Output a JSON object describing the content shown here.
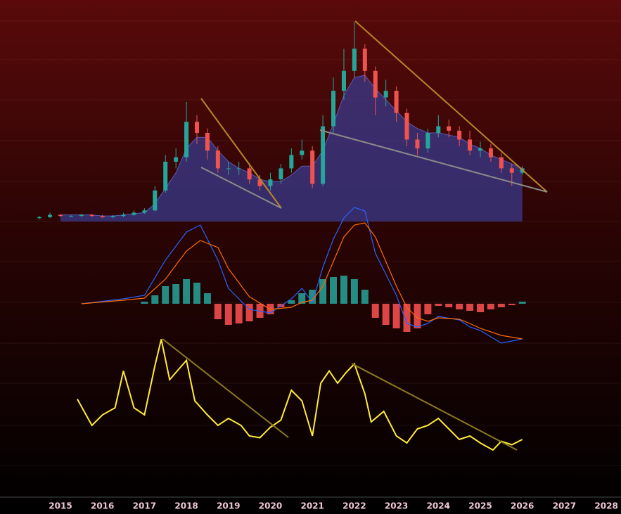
{
  "chart_data": [
    {
      "type": "candlestick",
      "x": [
        2014.5,
        2014.75,
        2015,
        2015.25,
        2015.5,
        2015.75,
        2016,
        2016.25,
        2016.5,
        2016.75,
        2017,
        2017.25,
        2017.5,
        2017.75,
        2018,
        2018.25,
        2018.5,
        2018.75,
        2019,
        2019.25,
        2019.5,
        2019.75,
        2020,
        2020.25,
        2020.5,
        2020.75,
        2021,
        2021.25,
        2021.5,
        2021.75,
        2022,
        2022.25,
        2022.5,
        2022.75,
        2023,
        2023.25,
        2023.5,
        2023.75,
        2024,
        2024.25,
        2024.5,
        2024.75,
        2025,
        2025.25,
        2025.5,
        2025.75,
        2026
      ],
      "open": [
        1.5,
        2,
        3,
        2.5,
        2.5,
        3,
        2.5,
        2,
        2.5,
        3,
        4,
        5,
        14,
        27,
        29,
        45,
        40,
        32,
        24,
        24,
        24,
        19,
        16,
        19,
        24,
        30,
        32,
        17,
        43,
        59,
        68,
        78,
        68,
        56,
        59,
        49,
        37,
        33,
        40,
        43,
        41,
        37,
        32,
        33,
        29,
        24,
        22
      ],
      "high": [
        2.5,
        4,
        3.5,
        3,
        3.5,
        3.5,
        3,
        3,
        4,
        5,
        6,
        16,
        30,
        33,
        54,
        48,
        42,
        34,
        27,
        27,
        26,
        21,
        22,
        26,
        33,
        37,
        34,
        48,
        65,
        78,
        90,
        80,
        70,
        64,
        61,
        51,
        40,
        42,
        48,
        46,
        43,
        41,
        36,
        35,
        31,
        26,
        25
      ],
      "low": [
        1,
        1.5,
        2,
        2,
        2,
        2,
        1.5,
        1.5,
        2,
        2.5,
        3.5,
        4.5,
        13,
        24,
        27,
        35,
        28,
        22,
        21,
        21,
        17,
        14,
        14,
        17,
        22,
        28,
        15,
        16,
        40,
        55,
        65,
        63,
        48,
        52,
        45,
        34,
        30,
        31,
        38,
        38,
        34,
        30,
        29,
        27,
        22,
        16,
        21
      ],
      "close": [
        2,
        3,
        2.5,
        2.5,
        3,
        2.5,
        2,
        2.5,
        3,
        4,
        5,
        14,
        27,
        29,
        45,
        40,
        32,
        24,
        24,
        24,
        19,
        16,
        19,
        24,
        30,
        32,
        17,
        43,
        59,
        68,
        78,
        68,
        56,
        59,
        49,
        37,
        33,
        40,
        43,
        41,
        37,
        32,
        33,
        29,
        24,
        22,
        24
      ],
      "ma": [
        null,
        null,
        3,
        3,
        3,
        3,
        2.5,
        2.5,
        3,
        3.5,
        4,
        8,
        15,
        22,
        33,
        38,
        38,
        32,
        27,
        24,
        22,
        19,
        18,
        18,
        21,
        25,
        25,
        32,
        44,
        57,
        65,
        66,
        60,
        55,
        50,
        45,
        42,
        40,
        40,
        39,
        38,
        35,
        33,
        30,
        28,
        26,
        24
      ],
      "up_color": "#26a69a",
      "down_color": "#ef5350",
      "ma_color": "#3a3a8c",
      "xlim": [
        2013.56,
        2028.35
      ],
      "ylim": [
        0,
        100
      ],
      "xticks": [
        2015,
        2016,
        2017,
        2018,
        2019,
        2020,
        2021,
        2022,
        2023,
        2024,
        2025,
        2026,
        2027,
        2028
      ]
    },
    {
      "type": "macd",
      "x": [
        2015.5,
        2016.5,
        2017,
        2017.5,
        2018,
        2018.33,
        2018.75,
        2019,
        2019.5,
        2020,
        2020.5,
        2020.75,
        2021,
        2021.25,
        2021.5,
        2021.75,
        2022,
        2022.25,
        2022.5,
        2022.75,
        2023,
        2023.25,
        2023.5,
        2023.75,
        2024,
        2024.5,
        2024.75,
        2025,
        2025.5,
        2026
      ],
      "series": [
        {
          "color": "#2962ff",
          "values": [
            0,
            7,
            12,
            62,
            102,
            112,
            62,
            22,
            -8,
            -13,
            7,
            22,
            2,
            52,
            92,
            122,
            137,
            132,
            72,
            42,
            12,
            -28,
            -33,
            -28,
            -18,
            -23,
            -33,
            -38,
            -56,
            -50
          ]
        },
        {
          "color": "#ff6d00",
          "values": [
            0,
            5,
            8,
            35,
            75,
            90,
            80,
            50,
            10,
            -8,
            -5,
            2,
            5,
            25,
            60,
            95,
            112,
            115,
            95,
            60,
            25,
            -5,
            -20,
            -25,
            -20,
            -22,
            -28,
            -35,
            -45,
            -50
          ]
        }
      ],
      "hist_x": [
        2017,
        2017.25,
        2017.5,
        2017.75,
        2018,
        2018.25,
        2018.5,
        2018.75,
        2019,
        2019.25,
        2019.5,
        2019.75,
        2020,
        2020.25,
        2020.5,
        2020.75,
        2021,
        2021.25,
        2021.5,
        2021.75,
        2022,
        2022.25,
        2022.5,
        2022.75,
        2023,
        2023.25,
        2023.5,
        2023.75,
        2024,
        2024.25,
        2024.5,
        2024.75,
        2025,
        2025.25,
        2025.5,
        2025.75,
        2026
      ],
      "histogram": [
        3,
        12,
        25,
        28,
        35,
        30,
        15,
        -22,
        -30,
        -28,
        -25,
        -20,
        -15,
        -5,
        5,
        15,
        20,
        35,
        38,
        40,
        35,
        20,
        -20,
        -30,
        -35,
        -40,
        -35,
        -15,
        -3,
        -5,
        -8,
        -10,
        -12,
        -8,
        -5,
        -2,
        3
      ],
      "pos_color": "#26a69a",
      "neg_color": "#ff5252",
      "xlim": [
        2013.56,
        2028.35
      ],
      "ylim": [
        -60,
        140
      ]
    },
    {
      "type": "line",
      "x": [
        2015.4,
        2015.75,
        2016,
        2016.3,
        2016.5,
        2016.75,
        2017,
        2017.25,
        2017.4,
        2017.6,
        2018,
        2018.2,
        2018.5,
        2018.75,
        2019,
        2019.3,
        2019.5,
        2019.75,
        2020,
        2020.25,
        2020.5,
        2020.75,
        2021,
        2021.2,
        2021.4,
        2021.6,
        2021.8,
        2022,
        2022.25,
        2022.4,
        2022.7,
        2023,
        2023.25,
        2023.5,
        2023.75,
        2024,
        2024.25,
        2024.5,
        2024.75,
        2025,
        2025.3,
        2025.5,
        2025.75,
        2026
      ],
      "values": [
        53,
        38,
        44,
        48,
        69,
        48,
        44,
        72,
        87,
        64,
        75,
        52,
        44,
        38,
        42,
        38,
        32,
        31,
        37,
        41,
        58,
        52,
        32,
        62,
        69,
        62,
        68,
        73,
        56,
        40,
        46,
        32,
        28,
        36,
        38,
        42,
        36,
        30,
        32,
        28,
        24,
        29,
        27,
        30
      ],
      "color": "#ffeb3b",
      "xlim": [
        2013.56,
        2028.35
      ],
      "ylim": [
        0,
        100
      ]
    }
  ]
}
